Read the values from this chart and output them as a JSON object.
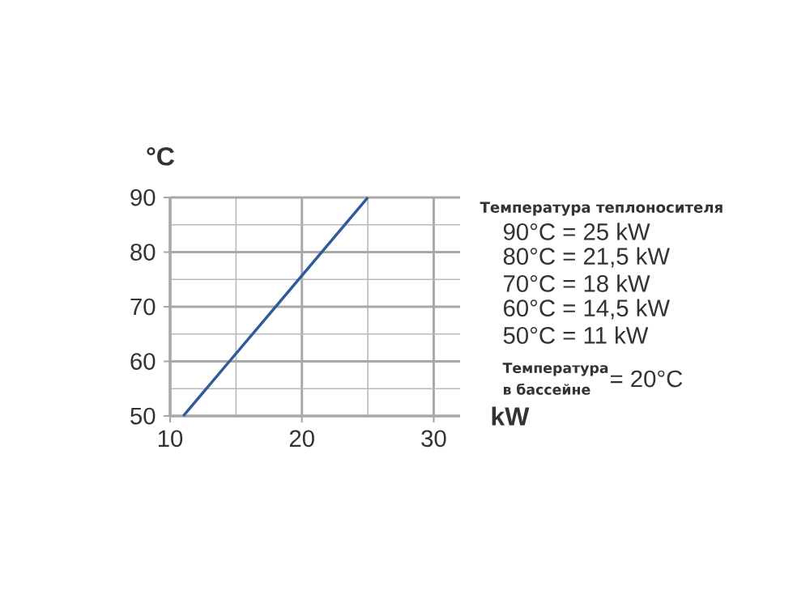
{
  "chart_data": {
    "type": "line",
    "xlabel": "kW",
    "ylabel": "°C",
    "x": [
      11,
      14.5,
      18,
      21.5,
      25
    ],
    "series": [
      {
        "color": "#2e5c9a",
        "values": [
          50,
          60,
          70,
          80,
          90
        ]
      }
    ],
    "xlim": [
      10,
      32
    ],
    "ylim": [
      50,
      90
    ],
    "xticks": [
      10,
      20,
      30
    ],
    "yticks": [
      50,
      60,
      70,
      80,
      90
    ],
    "grid": true,
    "marker": "none",
    "line_style": "solid",
    "annotations": [
      "Температура теплоносителя",
      "90°C = 25 kW",
      "80°C = 21,5 kW",
      "70°C = 18 kW",
      "60°C = 14,5 kW",
      "50°C = 11 kW",
      "Температура в бассейне",
      "= 20°C"
    ]
  }
}
